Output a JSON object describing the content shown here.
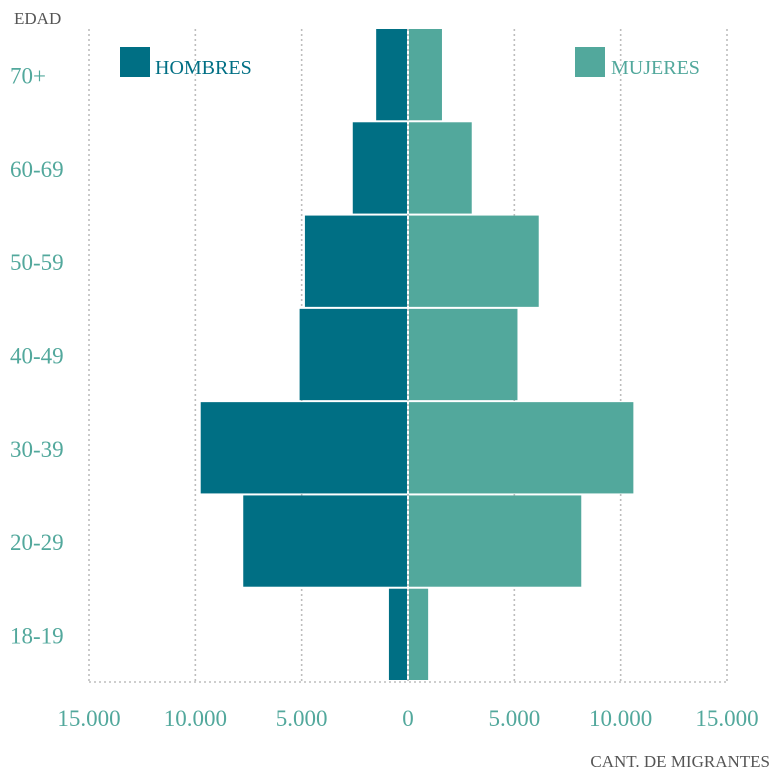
{
  "chart_data": {
    "type": "bar",
    "orientation": "horizontal-diverging",
    "y_axis_title": "EDAD",
    "x_axis_title": "CANT. DE MIGRANTES",
    "categories": [
      "70+",
      "60-69",
      "50-59",
      "40-49",
      "30-39",
      "20-29",
      "18-19"
    ],
    "series": [
      {
        "name": "HOMBRES",
        "color": "#006f84",
        "values": [
          1450,
          2550,
          4800,
          5050,
          9700,
          7700,
          850
        ]
      },
      {
        "name": "MUJERES",
        "color": "#52a89c",
        "values": [
          1550,
          2950,
          6100,
          5100,
          10550,
          8100,
          900
        ]
      }
    ],
    "xlim": [
      -15000,
      15000
    ],
    "x_ticks": [
      -15000,
      -10000,
      -5000,
      0,
      5000,
      10000,
      15000
    ],
    "x_tick_labels": [
      "15.000",
      "10.000",
      "5.000",
      "0",
      "5.000",
      "10.000",
      "15.000"
    ],
    "grid": "vertical dotted",
    "legend_position": "top"
  },
  "colors": {
    "tick_label": "#52a89c",
    "axis_title": "#555555",
    "grid": "#bdbdbd"
  }
}
